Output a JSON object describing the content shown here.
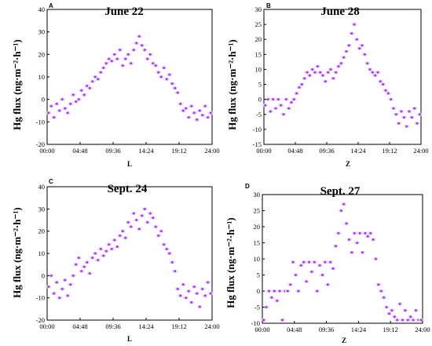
{
  "chart_data": [
    {
      "type": "scatter",
      "panel_label": "A",
      "title": "June 22",
      "ylabel": "Hg flux (ng·m⁻²·h⁻¹)",
      "xlabel": "L",
      "x_ticks": [
        "00:00",
        "04:48",
        "09:36",
        "14:24",
        "19:12",
        "24:00"
      ],
      "xlim": [
        0,
        24
      ],
      "ylim": [
        -20,
        40
      ],
      "y_ticks": [
        -20,
        -10,
        0,
        10,
        20,
        30,
        40
      ],
      "color": "#9a3cf0",
      "series": [
        {
          "x": [
            0.2,
            0.6,
            1.0,
            1.4,
            1.8,
            2.2,
            2.6,
            3.0,
            3.4,
            3.8,
            4.2,
            4.6,
            5.0,
            5.4,
            5.8,
            6.2,
            6.6,
            7.0,
            7.4,
            7.8,
            8.2,
            8.6,
            9.0,
            9.4,
            9.8,
            10.2,
            10.6,
            11.0,
            11.4,
            11.8,
            12.2,
            12.6,
            13.0,
            13.4,
            13.8,
            14.2,
            14.6,
            15.0,
            15.4,
            15.8,
            16.2,
            16.6,
            17.0,
            17.4,
            17.8,
            18.2,
            18.6,
            19.0,
            19.4,
            19.8,
            20.2,
            20.6,
            21.0,
            21.4,
            21.8,
            22.2,
            22.6,
            23.0,
            23.4,
            23.8
          ],
          "y": [
            -6,
            -3,
            -8,
            -2,
            -5,
            0,
            -4,
            -6,
            -2,
            2,
            -1,
            0,
            4,
            2,
            6,
            5,
            8,
            10,
            9,
            12,
            14,
            16,
            18,
            17,
            20,
            18,
            22,
            15,
            18,
            20,
            16,
            22,
            25,
            28,
            24,
            22,
            18,
            20,
            16,
            15,
            12,
            10,
            14,
            9,
            11,
            7,
            5,
            3,
            -2,
            -5,
            -4,
            -8,
            -3,
            -6,
            -9,
            -5,
            -7,
            -3,
            -8,
            -6
          ]
        }
      ]
    },
    {
      "type": "scatter",
      "panel_label": "B",
      "title": "June 28",
      "ylabel": "Hg flux (ng·m⁻²·h⁻¹)",
      "xlabel": "Z",
      "x_ticks": [
        "00:00",
        "04:48",
        "09:36",
        "14:24",
        "19:12",
        "24:00"
      ],
      "xlim": [
        0,
        24
      ],
      "ylim": [
        -15,
        30
      ],
      "y_ticks": [
        -15,
        -10,
        -5,
        0,
        5,
        10,
        15,
        20,
        25,
        30
      ],
      "color": "#9a3cf0",
      "series": [
        {
          "x": [
            0.2,
            0.6,
            1.0,
            1.4,
            1.8,
            2.2,
            2.6,
            3.0,
            3.4,
            3.8,
            4.2,
            4.6,
            5.0,
            5.4,
            5.8,
            6.2,
            6.6,
            7.0,
            7.4,
            7.8,
            8.2,
            8.6,
            9.0,
            9.4,
            9.8,
            10.2,
            10.6,
            11.0,
            11.4,
            11.8,
            12.2,
            12.6,
            13.0,
            13.4,
            13.8,
            14.2,
            14.6,
            15.0,
            15.4,
            15.8,
            16.2,
            16.6,
            17.0,
            17.4,
            17.8,
            18.2,
            18.6,
            19.0,
            19.4,
            19.8,
            20.2,
            20.6,
            21.0,
            21.4,
            21.8,
            22.2,
            22.6,
            23.0,
            23.4,
            23.8
          ],
          "y": [
            -2,
            0,
            -4,
            0,
            -3,
            0,
            -2,
            -5,
            0,
            -3,
            -1,
            0,
            2,
            4,
            5,
            7,
            9,
            8,
            10,
            9,
            11,
            9,
            8,
            6,
            9,
            10,
            7,
            9,
            11,
            12,
            14,
            16,
            18,
            22,
            25,
            20,
            17,
            18,
            15,
            12,
            10,
            9,
            8,
            9,
            6,
            5,
            3,
            2,
            0,
            -3,
            -5,
            -8,
            -4,
            -6,
            -9,
            -4,
            -6,
            -3,
            -8,
            -5
          ]
        }
      ]
    },
    {
      "type": "scatter",
      "panel_label": "C",
      "title": "Sept. 24",
      "ylabel": "Hg flux (ng·m⁻²·h⁻¹)",
      "xlabel": "L",
      "x_ticks": [
        "00:00",
        "04:48",
        "09:36",
        "14:24",
        "19:12",
        "24:00"
      ],
      "xlim": [
        0,
        24
      ],
      "ylim": [
        -20,
        40
      ],
      "y_ticks": [
        -20,
        -10,
        0,
        10,
        20,
        30,
        40
      ],
      "color": "#9a3cf0",
      "series": [
        {
          "x": [
            0.2,
            0.6,
            1.0,
            1.4,
            1.8,
            2.2,
            2.6,
            3.0,
            3.4,
            3.8,
            4.2,
            4.6,
            5.0,
            5.4,
            5.8,
            6.2,
            6.6,
            7.0,
            7.4,
            7.8,
            8.2,
            8.6,
            9.0,
            9.4,
            9.8,
            10.2,
            10.6,
            11.0,
            11.4,
            11.8,
            12.2,
            12.6,
            13.0,
            13.4,
            13.8,
            14.2,
            14.6,
            15.0,
            15.4,
            15.8,
            16.2,
            16.6,
            17.0,
            17.4,
            17.8,
            18.2,
            18.6,
            19.0,
            19.4,
            19.8,
            20.2,
            20.6,
            21.0,
            21.4,
            21.8,
            22.2,
            22.6,
            23.0,
            23.4,
            23.8
          ],
          "y": [
            -5,
            0,
            -8,
            -3,
            -10,
            -6,
            -2,
            -9,
            -4,
            0,
            5,
            8,
            2,
            4,
            6,
            1,
            8,
            10,
            7,
            12,
            9,
            11,
            14,
            12,
            16,
            13,
            18,
            20,
            17,
            24,
            22,
            28,
            25,
            21,
            27,
            30,
            24,
            28,
            26,
            22,
            18,
            20,
            14,
            12,
            10,
            6,
            2,
            -6,
            -9,
            -4,
            -10,
            -7,
            -12,
            -5,
            -8,
            -14,
            -6,
            -9,
            -3,
            -8
          ]
        }
      ]
    },
    {
      "type": "scatter",
      "panel_label": "D",
      "title": "Sept. 27",
      "ylabel": "Hg flux (ng·m⁻²·h⁻¹)",
      "xlabel": "Z",
      "x_ticks": [
        "00:00",
        "04:48",
        "09:36",
        "14:24",
        "19:12",
        "24:00"
      ],
      "xlim": [
        0,
        24
      ],
      "ylim": [
        -10,
        30
      ],
      "y_ticks": [
        -10,
        -5,
        0,
        5,
        10,
        15,
        20,
        25,
        30
      ],
      "color": "#9a3cf0",
      "series": [
        {
          "x": [
            0.2,
            0.6,
            1.0,
            1.4,
            1.8,
            2.2,
            2.6,
            3.0,
            3.4,
            3.8,
            4.2,
            4.6,
            5.0,
            5.4,
            5.8,
            6.2,
            6.6,
            7.0,
            7.4,
            7.8,
            8.2,
            8.6,
            9.0,
            9.4,
            9.8,
            10.2,
            10.6,
            11.0,
            11.4,
            11.8,
            12.2,
            12.6,
            13.0,
            13.4,
            13.8,
            14.2,
            14.6,
            15.0,
            15.4,
            15.8,
            16.2,
            16.6,
            17.0,
            17.4,
            17.8,
            18.2,
            18.6,
            19.0,
            19.4,
            19.8,
            20.2,
            20.6,
            21.0,
            21.4,
            21.8,
            22.2,
            22.6,
            23.0,
            23.4,
            23.8
          ],
          "y": [
            -9,
            -5,
            0,
            -2,
            0,
            -3,
            0,
            -9,
            0,
            0,
            2,
            9,
            5,
            0,
            8,
            9,
            3,
            9,
            6,
            9,
            0,
            8,
            5,
            9,
            2,
            9,
            7,
            14,
            18,
            25,
            27,
            21,
            16,
            12,
            18,
            15,
            18,
            12,
            18,
            17,
            18,
            16,
            10,
            2,
            0,
            -2,
            -5,
            -7,
            -6,
            -8,
            -9,
            -4,
            -9,
            -6,
            -9,
            -8,
            -9,
            -6,
            -9,
            -9
          ]
        }
      ]
    }
  ]
}
